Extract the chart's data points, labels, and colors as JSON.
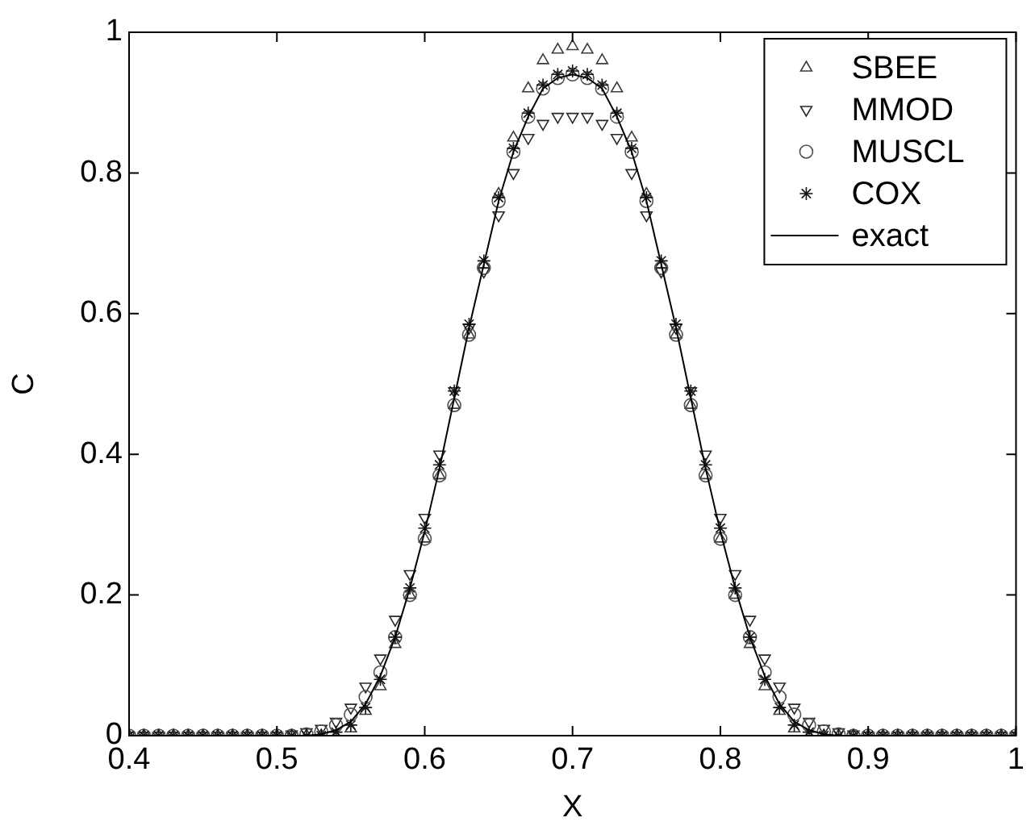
{
  "chart_data": {
    "type": "scatter",
    "xlabel": "X",
    "ylabel": "C",
    "xlim": [
      0.4,
      1
    ],
    "ylim": [
      0,
      1
    ],
    "xticks": [
      0.4,
      0.5,
      0.6,
      0.7,
      0.8,
      0.9,
      1
    ],
    "yticks": [
      0,
      0.2,
      0.4,
      0.6,
      0.8,
      1
    ],
    "grid": false,
    "legend": "top right",
    "x": [
      0.4,
      0.41,
      0.42,
      0.43,
      0.44,
      0.45,
      0.46,
      0.47,
      0.48,
      0.49,
      0.5,
      0.51,
      0.52,
      0.53,
      0.54,
      0.55,
      0.56,
      0.57,
      0.58,
      0.59,
      0.6,
      0.61,
      0.62,
      0.63,
      0.64,
      0.65,
      0.66,
      0.67,
      0.68,
      0.69,
      0.7,
      0.71,
      0.72,
      0.73,
      0.74,
      0.75,
      0.76,
      0.77,
      0.78,
      0.79,
      0.8,
      0.81,
      0.82,
      0.83,
      0.84,
      0.85,
      0.86,
      0.87,
      0.88,
      0.89,
      0.9,
      0.91,
      0.92,
      0.93,
      0.94,
      0.95,
      0.96,
      0.97,
      0.98,
      0.99,
      1
    ],
    "series": [
      {
        "name": "SBEE",
        "color": "#3c3c3c",
        "marker": "triangle",
        "values": [
          0,
          0,
          0,
          0,
          0,
          0,
          0,
          0,
          0,
          0,
          0,
          0,
          0,
          0,
          0,
          0.01,
          0.035,
          0.07,
          0.13,
          0.2,
          0.28,
          0.37,
          0.47,
          0.57,
          0.67,
          0.77,
          0.85,
          0.92,
          0.96,
          0.975,
          0.98,
          0.975,
          0.96,
          0.92,
          0.85,
          0.77,
          0.67,
          0.57,
          0.47,
          0.37,
          0.28,
          0.2,
          0.13,
          0.07,
          0.035,
          0.01,
          0,
          0,
          0,
          0,
          0,
          0,
          0,
          0,
          0,
          0,
          0,
          0,
          0,
          0,
          0
        ]
      },
      {
        "name": "MMOD",
        "color": "#282828",
        "marker": "triangle-down",
        "values": [
          0,
          0,
          0,
          0,
          0,
          0,
          0,
          0,
          0,
          0,
          0,
          0.002,
          0.005,
          0.01,
          0.02,
          0.04,
          0.07,
          0.11,
          0.165,
          0.23,
          0.31,
          0.4,
          0.49,
          0.58,
          0.66,
          0.74,
          0.8,
          0.85,
          0.87,
          0.88,
          0.88,
          0.88,
          0.87,
          0.85,
          0.8,
          0.74,
          0.66,
          0.58,
          0.49,
          0.4,
          0.31,
          0.23,
          0.165,
          0.11,
          0.07,
          0.04,
          0.02,
          0.01,
          0.005,
          0.002,
          0,
          0,
          0,
          0,
          0,
          0,
          0,
          0,
          0,
          0,
          0
        ]
      },
      {
        "name": "MUSCL",
        "color": "#505050",
        "marker": "circle",
        "values": [
          0,
          0,
          0,
          0,
          0,
          0,
          0,
          0,
          0,
          0,
          0,
          0,
          0.002,
          0.006,
          0.015,
          0.03,
          0.055,
          0.09,
          0.14,
          0.2,
          0.28,
          0.37,
          0.47,
          0.57,
          0.665,
          0.76,
          0.83,
          0.88,
          0.92,
          0.935,
          0.94,
          0.935,
          0.92,
          0.88,
          0.83,
          0.76,
          0.665,
          0.57,
          0.47,
          0.37,
          0.28,
          0.2,
          0.14,
          0.09,
          0.055,
          0.03,
          0.015,
          0.006,
          0.002,
          0,
          0,
          0,
          0,
          0,
          0,
          0,
          0,
          0,
          0,
          0,
          0
        ]
      },
      {
        "name": "COX",
        "color": "#141414",
        "marker": "cross",
        "values": [
          0,
          0,
          0,
          0,
          0,
          0,
          0,
          0,
          0,
          0,
          0,
          0,
          0,
          0,
          0.005,
          0.015,
          0.04,
          0.08,
          0.14,
          0.21,
          0.295,
          0.385,
          0.49,
          0.585,
          0.675,
          0.765,
          0.835,
          0.885,
          0.925,
          0.94,
          0.945,
          0.94,
          0.925,
          0.885,
          0.835,
          0.765,
          0.675,
          0.585,
          0.49,
          0.385,
          0.295,
          0.21,
          0.14,
          0.08,
          0.04,
          0.015,
          0.005,
          0,
          0,
          0,
          0,
          0,
          0,
          0,
          0,
          0,
          0,
          0,
          0,
          0,
          0
        ]
      },
      {
        "name": "exact",
        "type": "line",
        "color": "#000000",
        "marker": "none",
        "line_style": "solid",
        "values": [
          0,
          0,
          0,
          0,
          0,
          0,
          0,
          0,
          0,
          0,
          0,
          0,
          0,
          0.002,
          0.008,
          0.02,
          0.045,
          0.085,
          0.14,
          0.21,
          0.29,
          0.38,
          0.48,
          0.58,
          0.67,
          0.76,
          0.83,
          0.88,
          0.92,
          0.935,
          0.94,
          0.935,
          0.92,
          0.88,
          0.83,
          0.76,
          0.67,
          0.58,
          0.48,
          0.38,
          0.29,
          0.21,
          0.14,
          0.085,
          0.045,
          0.02,
          0.008,
          0.002,
          0,
          0,
          0,
          0,
          0,
          0,
          0,
          0,
          0,
          0,
          0,
          0,
          0
        ]
      }
    ]
  }
}
